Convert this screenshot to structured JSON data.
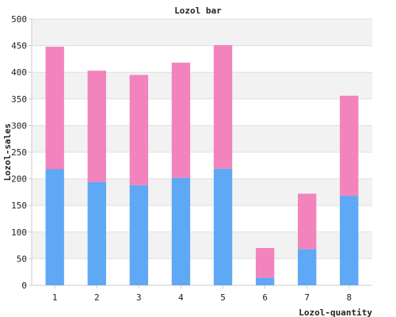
{
  "chart_data": {
    "type": "bar",
    "stacked": true,
    "title": "Lozol bar",
    "xlabel": "Lozol-quantity",
    "ylabel": "Lozol-sales",
    "categories": [
      "1",
      "2",
      "3",
      "4",
      "5",
      "6",
      "7",
      "8"
    ],
    "series": [
      {
        "name": "",
        "color": "#5fa8f5",
        "values": [
          218,
          194,
          188,
          202,
          219,
          14,
          68,
          168
        ]
      },
      {
        "name": "",
        "color": "#f283bd",
        "values": [
          230,
          209,
          207,
          216,
          232,
          56,
          104,
          188
        ]
      }
    ],
    "ylim": [
      0,
      500
    ],
    "yticks": [
      0,
      50,
      100,
      150,
      200,
      250,
      300,
      350,
      400,
      450,
      500
    ],
    "grid": true,
    "band_colors": [
      "#ffffff",
      "#f2f2f2"
    ],
    "legend": "none"
  }
}
